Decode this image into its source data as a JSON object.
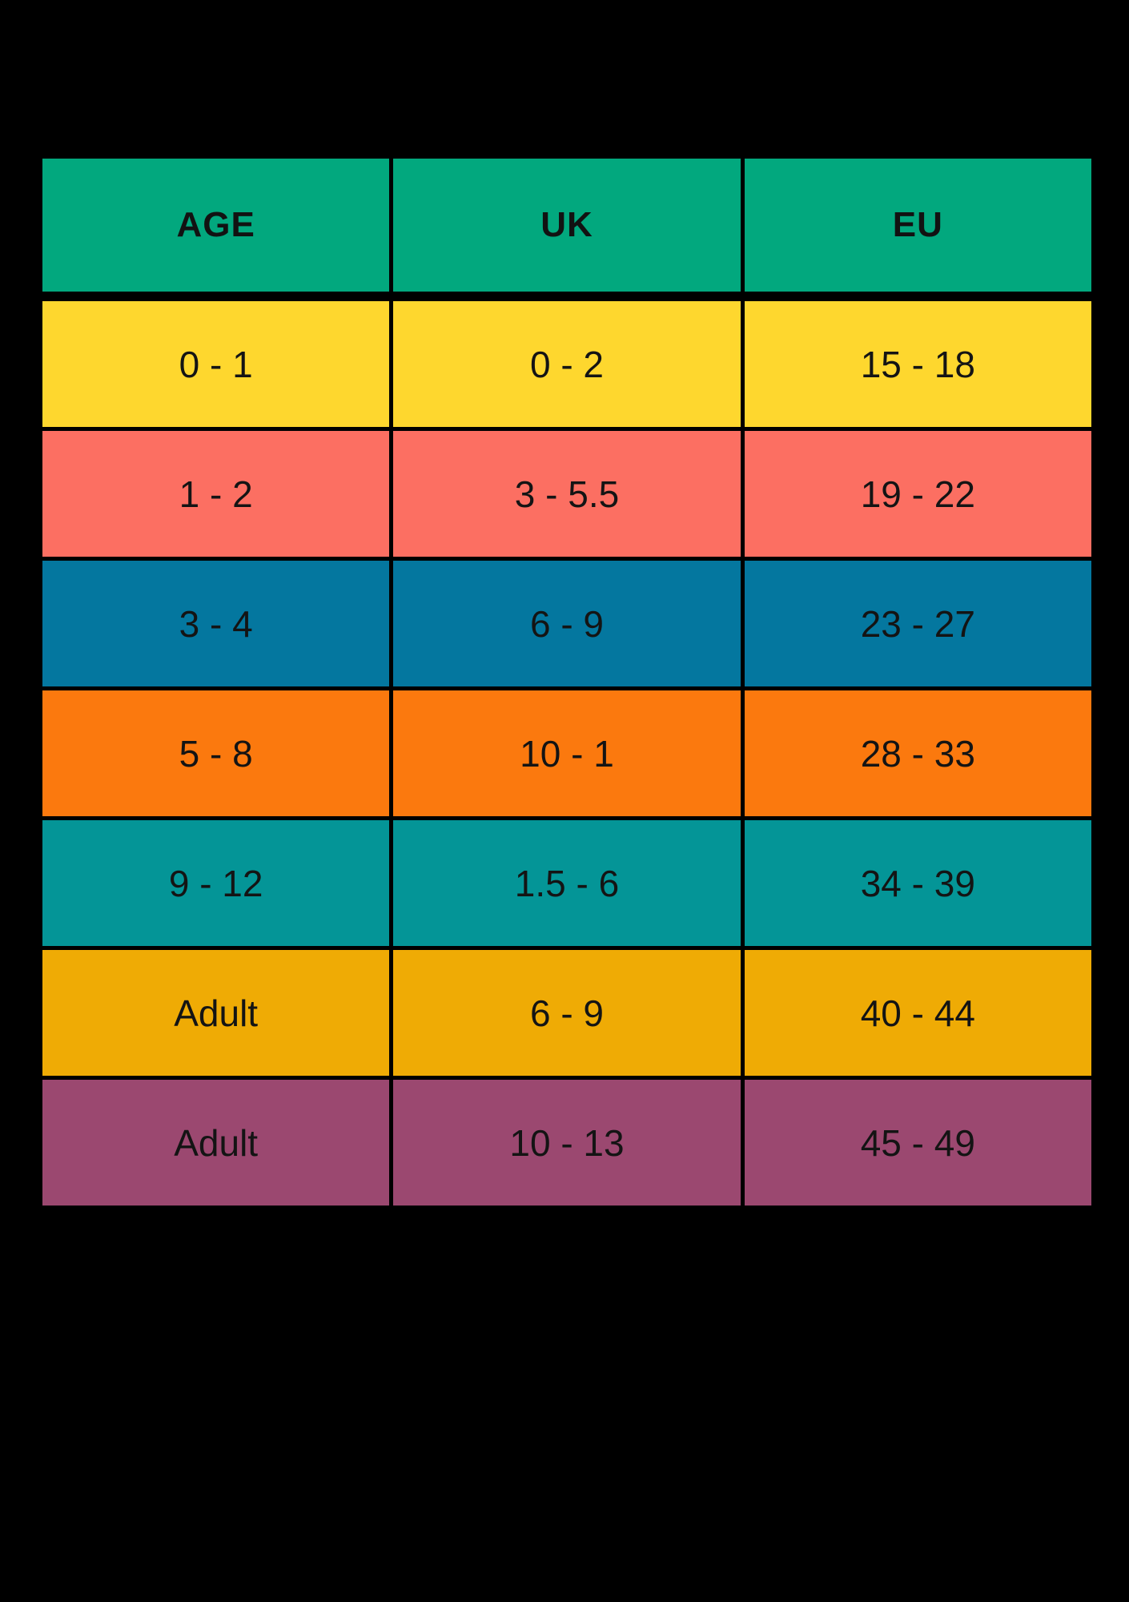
{
  "chart_data": {
    "type": "table",
    "columns": [
      "AGE",
      "UK",
      "EU"
    ],
    "rows": [
      [
        "0 - 1",
        "0 - 2",
        "15 - 18"
      ],
      [
        "1 - 2",
        "3 - 5.5",
        "19 - 22"
      ],
      [
        "3 - 4",
        "6 - 9",
        "23 - 27"
      ],
      [
        "5 - 8",
        "10 - 1",
        "28 - 33"
      ],
      [
        "9 - 12",
        "1.5 - 6",
        "34 - 39"
      ],
      [
        "Adult",
        "6 - 9",
        "40 - 44"
      ],
      [
        "Adult",
        "10 - 13",
        "45 - 49"
      ]
    ],
    "legend_position": "none",
    "grid": false
  },
  "table": {
    "background_color": "#000000",
    "text_color": "#141414",
    "header": {
      "color": "#02A87E",
      "columns": {
        "age": "AGE",
        "uk": "UK",
        "eu": "EU"
      }
    },
    "rows": [
      {
        "color": "#FED72E",
        "age": "0 - 1",
        "uk": "0 - 2",
        "eu": "15 - 18"
      },
      {
        "color": "#FC6F62",
        "age": "1 - 2",
        "uk": "3 - 5.5",
        "eu": "19 - 22"
      },
      {
        "color": "#04779F",
        "age": "3 - 4",
        "uk": "6 - 9",
        "eu": "23 - 27"
      },
      {
        "color": "#FB790E",
        "age": "5 - 8",
        "uk": "10 - 1",
        "eu": "28 - 33"
      },
      {
        "color": "#049597",
        "age": "9 - 12",
        "uk": "1.5 - 6",
        "eu": "34 - 39"
      },
      {
        "color": "#EFAB05",
        "age": "Adult",
        "uk": "6 - 9",
        "eu": "40 - 44"
      },
      {
        "color": "#9B4870",
        "age": "Adult",
        "uk": "10 - 13",
        "eu": "45 - 49"
      }
    ]
  }
}
